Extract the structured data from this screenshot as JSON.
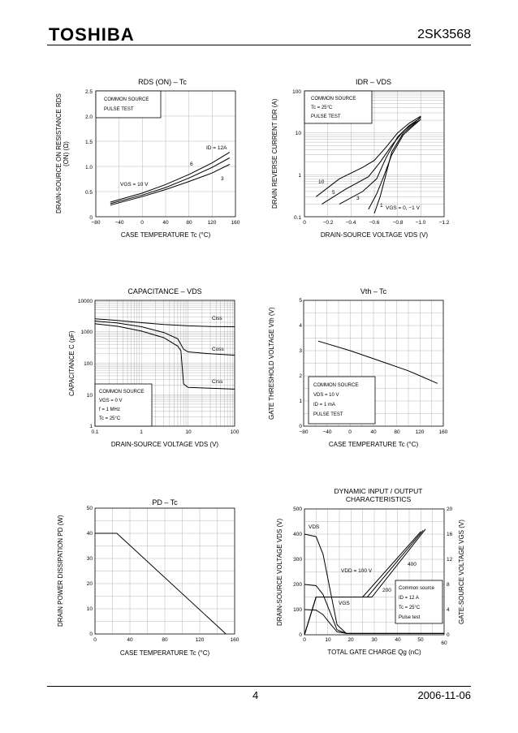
{
  "header": {
    "logo": "TOSHIBA",
    "part": "2SK3568"
  },
  "footer": {
    "page": "4",
    "date": "2006-11-06"
  },
  "chart_data": [
    {
      "type": "line",
      "name": "rds",
      "title": "RDS (ON) – Tc",
      "ylabel": "DRAIN-SOURCE ON RESISTANCE RDS (ON) (Ω)",
      "xlabel": "CASE TEMPERATURE Tc (°C)",
      "xlim": [
        -80,
        160
      ],
      "ylim": [
        0,
        2.5
      ],
      "xticks": [
        "−80",
        "−40",
        "0",
        "40",
        "80",
        "120",
        "160"
      ],
      "yticks": [
        "0",
        "0.5",
        "1.0",
        "1.5",
        "2.0",
        "2.5"
      ],
      "legend": [
        "COMMON SOURCE",
        "PULSE TEST"
      ],
      "series": [
        {
          "name": "ID = 12A",
          "x": [
            -55,
            0,
            40,
            80,
            120,
            150
          ],
          "y": [
            0.29,
            0.47,
            0.64,
            0.84,
            1.07,
            1.28
          ]
        },
        {
          "name": "6",
          "x": [
            -55,
            0,
            40,
            80,
            120,
            150
          ],
          "y": [
            0.26,
            0.43,
            0.58,
            0.77,
            0.98,
            1.17
          ]
        },
        {
          "name": "3",
          "x": [
            -55,
            0,
            40,
            80,
            120,
            150
          ],
          "y": [
            0.23,
            0.4,
            0.54,
            0.7,
            0.87,
            1.04
          ]
        }
      ],
      "annotations": [
        "ID = 12A",
        "6",
        "3",
        "VGS = 10 V"
      ]
    },
    {
      "type": "line",
      "name": "idr",
      "title": "IDR – VDS",
      "ylabel": "DRAIN REVERSE CURRENT IDR (A)",
      "xlabel": "DRAIN-SOURCE VOLTAGE VDS (V)",
      "xlim": [
        0,
        -1.2
      ],
      "ylim": [
        0.1,
        100
      ],
      "yscale": "log",
      "xticks": [
        "0",
        "−0.2",
        "−0.4",
        "−0.6",
        "−0.8",
        "−1.0",
        "−1.2"
      ],
      "yticks": [
        "0.1",
        "1",
        "10",
        "100"
      ],
      "legend": [
        "COMMON SOURCE",
        "Tc = 25°C",
        "PULSE TEST"
      ],
      "series": [
        {
          "name": "10",
          "x": [
            -0.1,
            -0.3,
            -0.5,
            -0.6,
            -0.7,
            -0.8,
            -0.9,
            -1.0
          ],
          "y": [
            0.3,
            0.8,
            1.5,
            2.2,
            4.5,
            10,
            17,
            25
          ]
        },
        {
          "name": "5",
          "x": [
            -0.15,
            -0.35,
            -0.55,
            -0.65,
            -0.75,
            -0.85,
            -0.95,
            -1.0
          ],
          "y": [
            0.2,
            0.45,
            0.9,
            2,
            5,
            11,
            18,
            24
          ]
        },
        {
          "name": "3",
          "x": [
            -0.3,
            -0.5,
            -0.62,
            -0.7,
            -0.8,
            -0.9,
            -1.0
          ],
          "y": [
            0.2,
            0.4,
            0.8,
            2.5,
            8,
            15,
            23
          ]
        },
        {
          "name": "1",
          "x": [
            -0.55,
            -0.62,
            -0.68,
            -0.75,
            -0.85,
            -0.95,
            -1.0
          ],
          "y": [
            0.15,
            0.35,
            0.9,
            3,
            9,
            16,
            21
          ]
        },
        {
          "name": "VGS = 0, −1 V",
          "x": [
            -0.6,
            -0.65,
            -0.7,
            -0.75,
            -0.85,
            -0.95,
            -1.0
          ],
          "y": [
            0.12,
            0.3,
            1,
            3.5,
            10,
            17,
            21
          ]
        }
      ],
      "annotations": [
        "10",
        "5",
        "3",
        "1",
        "VGS = 0, −1 V"
      ]
    },
    {
      "type": "line",
      "name": "cap",
      "title": "CAPACITANCE – VDS",
      "ylabel": "CAPACITANCE C (pF)",
      "xlabel": "DRAIN-SOURCE VOLTAGE VDS (V)",
      "xlim": [
        0.1,
        100
      ],
      "ylim": [
        1,
        10000
      ],
      "xscale": "log",
      "yscale": "log",
      "xticks": [
        "0.1",
        "1",
        "10",
        "100"
      ],
      "yticks": [
        "1",
        "10",
        "100",
        "1000",
        "10000"
      ],
      "legend": [
        "COMMON SOURCE",
        "VGS = 0 V",
        "f = 1 MHz",
        "Tc = 25°C"
      ],
      "series": [
        {
          "name": "Ciss",
          "x": [
            0.1,
            0.3,
            1,
            3,
            10,
            30,
            100
          ],
          "y": [
            2600,
            2300,
            1950,
            1700,
            1550,
            1480,
            1450
          ]
        },
        {
          "name": "Coss",
          "x": [
            0.1,
            0.3,
            1,
            3,
            6,
            8,
            10,
            30,
            100
          ],
          "y": [
            2200,
            1900,
            1450,
            950,
            600,
            280,
            230,
            200,
            180
          ]
        },
        {
          "name": "Crss",
          "x": [
            0.1,
            0.3,
            1,
            3,
            6,
            7,
            8,
            10,
            30,
            100
          ],
          "y": [
            1800,
            1500,
            1050,
            650,
            350,
            250,
            22,
            17,
            16,
            15
          ]
        }
      ],
      "annotations": [
        "Ciss",
        "Coss",
        "Crss"
      ]
    },
    {
      "type": "line",
      "name": "vth",
      "title": "Vth – Tc",
      "ylabel": "GATE THRESHOLD VOLTAGE Vth (V)",
      "xlabel": "CASE TEMPERATURE Tc (°C)",
      "xlim": [
        -80,
        160
      ],
      "ylim": [
        0,
        5
      ],
      "xticks": [
        "−80",
        "−40",
        "0",
        "40",
        "80",
        "120",
        "160"
      ],
      "yticks": [
        "0",
        "1",
        "2",
        "3",
        "4",
        "5"
      ],
      "legend": [
        "COMMON SOURCE",
        "VDS = 10 V",
        "ID = 1 mA",
        "PULSE TEST"
      ],
      "series": [
        {
          "name": "Vth",
          "x": [
            -55,
            0,
            50,
            100,
            150
          ],
          "y": [
            3.38,
            3.0,
            2.6,
            2.2,
            1.7
          ]
        }
      ]
    },
    {
      "type": "line",
      "name": "pd",
      "title": "PD – Tc",
      "ylabel": "DRAIN POWER DISSIPATION PD (W)",
      "xlabel": "CASE TEMPERATURE Tc (°C)",
      "xlim": [
        0,
        160
      ],
      "ylim": [
        0,
        50
      ],
      "xticks": [
        "0",
        "40",
        "80",
        "120",
        "160"
      ],
      "yticks": [
        "0",
        "10",
        "20",
        "30",
        "40",
        "50"
      ],
      "series": [
        {
          "name": "PD",
          "x": [
            0,
            25,
            150
          ],
          "y": [
            40,
            40,
            0
          ]
        }
      ]
    },
    {
      "type": "line",
      "name": "dyn",
      "title": "DYNAMIC INPUT / OUTPUT CHARACTERISTICS",
      "ylabel": "DRAIN-SOURCE VOLTAGE VDS (V)",
      "y2label": "GATE-SOURCE VOLTAGE VGS (V)",
      "xlabel": "TOTAL GATE CHARGE Qg (nC)",
      "xlim": [
        0,
        60
      ],
      "ylim": [
        0,
        500
      ],
      "y2lim": [
        0,
        20
      ],
      "xticks": [
        "0",
        "10",
        "20",
        "30",
        "40",
        "50",
        "60"
      ],
      "yticks": [
        "0",
        "100",
        "200",
        "300",
        "400",
        "500"
      ],
      "y2ticks": [
        "0",
        "4",
        "8",
        "12",
        "16",
        "20"
      ],
      "legend": [
        "Common source",
        "ID = 12 A",
        "Tc = 25°C",
        "Pulse test"
      ],
      "series": [
        {
          "name": "VDS 400",
          "x": [
            0,
            5,
            8,
            11,
            14,
            18,
            60
          ],
          "y": [
            400,
            390,
            320,
            180,
            40,
            5,
            5
          ]
        },
        {
          "name": "VDS 200",
          "x": [
            0,
            5,
            8,
            11,
            14,
            18,
            60
          ],
          "y": [
            200,
            195,
            160,
            90,
            20,
            5,
            5
          ]
        },
        {
          "name": "VDS 100",
          "x": [
            0,
            5,
            8,
            11,
            14,
            18,
            60
          ],
          "y": [
            100,
            98,
            80,
            45,
            12,
            5,
            5
          ]
        },
        {
          "name": "VGS 100",
          "axis": "y2",
          "x": [
            0,
            5,
            25,
            50
          ],
          "y": [
            0,
            6,
            6,
            16.4
          ]
        },
        {
          "name": "VGS 200",
          "axis": "y2",
          "x": [
            0,
            5,
            27,
            51
          ],
          "y": [
            0,
            6,
            6,
            16.6
          ]
        },
        {
          "name": "VGS 400",
          "axis": "y2",
          "x": [
            0,
            5,
            29,
            52
          ],
          "y": [
            0,
            6,
            6,
            16.8
          ]
        }
      ],
      "annotations": [
        "VDS",
        "VDD = 100 V",
        "200",
        "400",
        "VGS"
      ]
    }
  ]
}
